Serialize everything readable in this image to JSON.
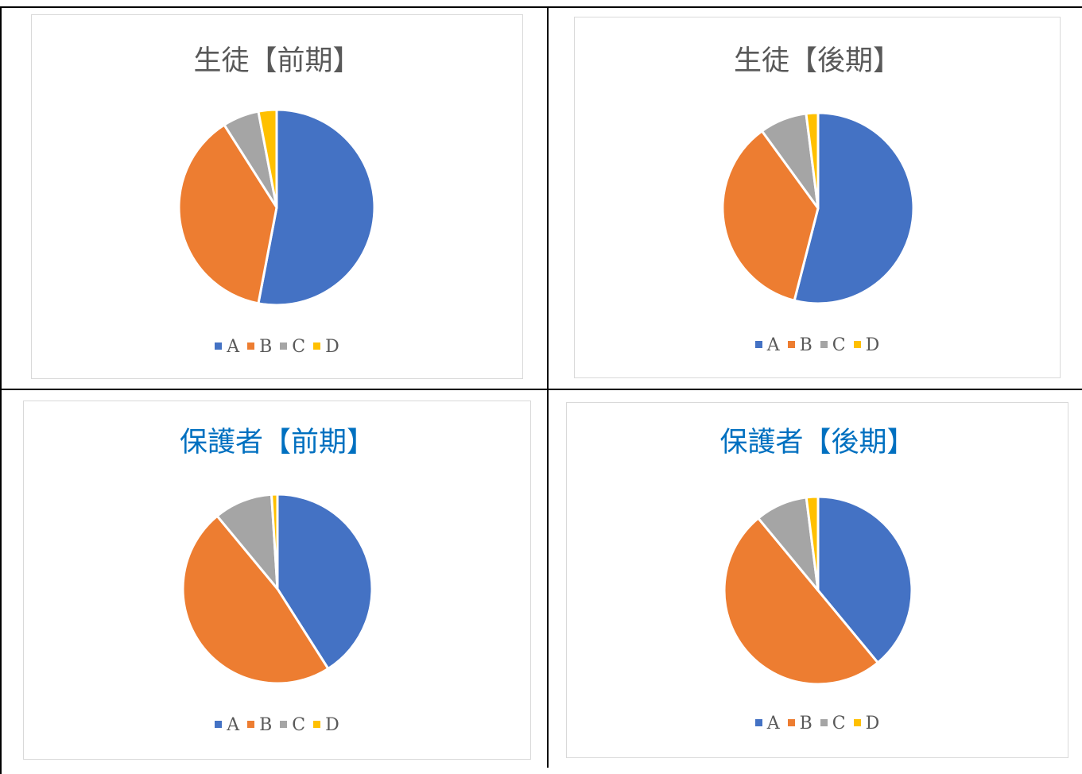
{
  "colors": {
    "A": "#4472C4",
    "B": "#ED7D31",
    "C": "#A5A5A5",
    "D": "#FFC000"
  },
  "chart_data": [
    {
      "type": "pie",
      "title": "生徒【前期】",
      "title_color": "#595959",
      "categories": [
        "A",
        "B",
        "C",
        "D"
      ],
      "values": [
        53,
        38,
        6,
        3
      ],
      "legend": "bottom"
    },
    {
      "type": "pie",
      "title": "生徒【後期】",
      "title_color": "#595959",
      "categories": [
        "A",
        "B",
        "C",
        "D"
      ],
      "values": [
        54,
        36,
        8,
        2
      ],
      "legend": "bottom"
    },
    {
      "type": "pie",
      "title": "保護者【前期】",
      "title_color": "#0070C0",
      "categories": [
        "A",
        "B",
        "C",
        "D"
      ],
      "values": [
        41,
        48,
        10,
        1
      ],
      "legend": "bottom"
    },
    {
      "type": "pie",
      "title": "保護者【後期】",
      "title_color": "#0070C0",
      "categories": [
        "A",
        "B",
        "C",
        "D"
      ],
      "values": [
        39,
        50,
        9,
        2
      ],
      "legend": "bottom"
    }
  ]
}
